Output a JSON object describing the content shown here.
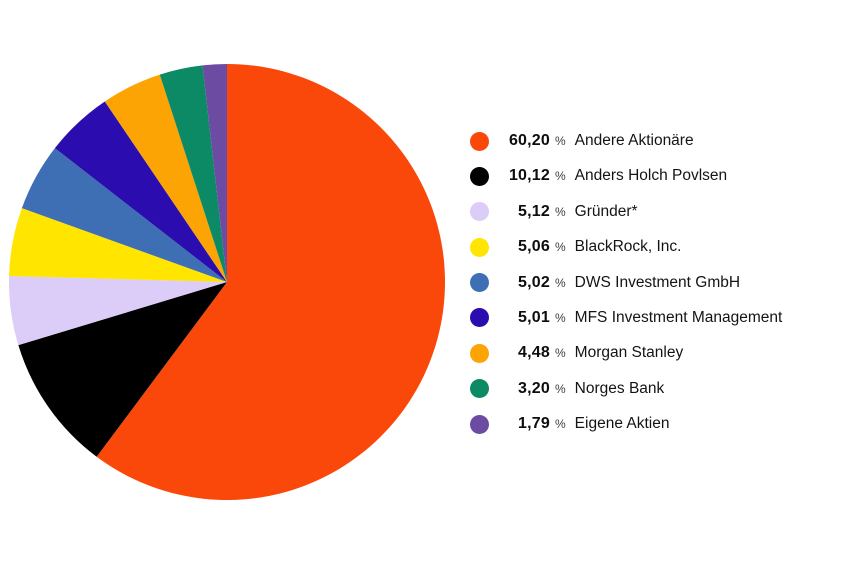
{
  "chart_data": {
    "type": "pie",
    "title": "",
    "unit": "%",
    "percent_symbol": "%",
    "start_angle_deg": 0,
    "direction": "clockwise",
    "legend_position": "right",
    "slices": [
      {
        "label": "Andere Aktionäre",
        "value": 60.2,
        "display_value": "60,20",
        "color": "#FA480A"
      },
      {
        "label": "Anders Holch Povlsen",
        "value": 10.12,
        "display_value": "10,12",
        "color": "#000000"
      },
      {
        "label": "Gründer*",
        "value": 5.12,
        "display_value": "5,12",
        "color": "#DBCDF8"
      },
      {
        "label": "BlackRock, Inc.",
        "value": 5.06,
        "display_value": "5,06",
        "color": "#FFE500"
      },
      {
        "label": "DWS Investment GmbH",
        "value": 5.02,
        "display_value": "5,02",
        "color": "#3E6FB4"
      },
      {
        "label": "MFS Investment Management",
        "value": 5.01,
        "display_value": "5,01",
        "color": "#2B0CAE"
      },
      {
        "label": "Morgan Stanley",
        "value": 4.48,
        "display_value": "4,48",
        "color": "#FCA403"
      },
      {
        "label": "Norges Bank",
        "value": 3.2,
        "display_value": "3,20",
        "color": "#0C8A66"
      },
      {
        "label": "Eigene Aktien",
        "value": 1.79,
        "display_value": "1,79",
        "color": "#6C4BA3"
      }
    ]
  }
}
